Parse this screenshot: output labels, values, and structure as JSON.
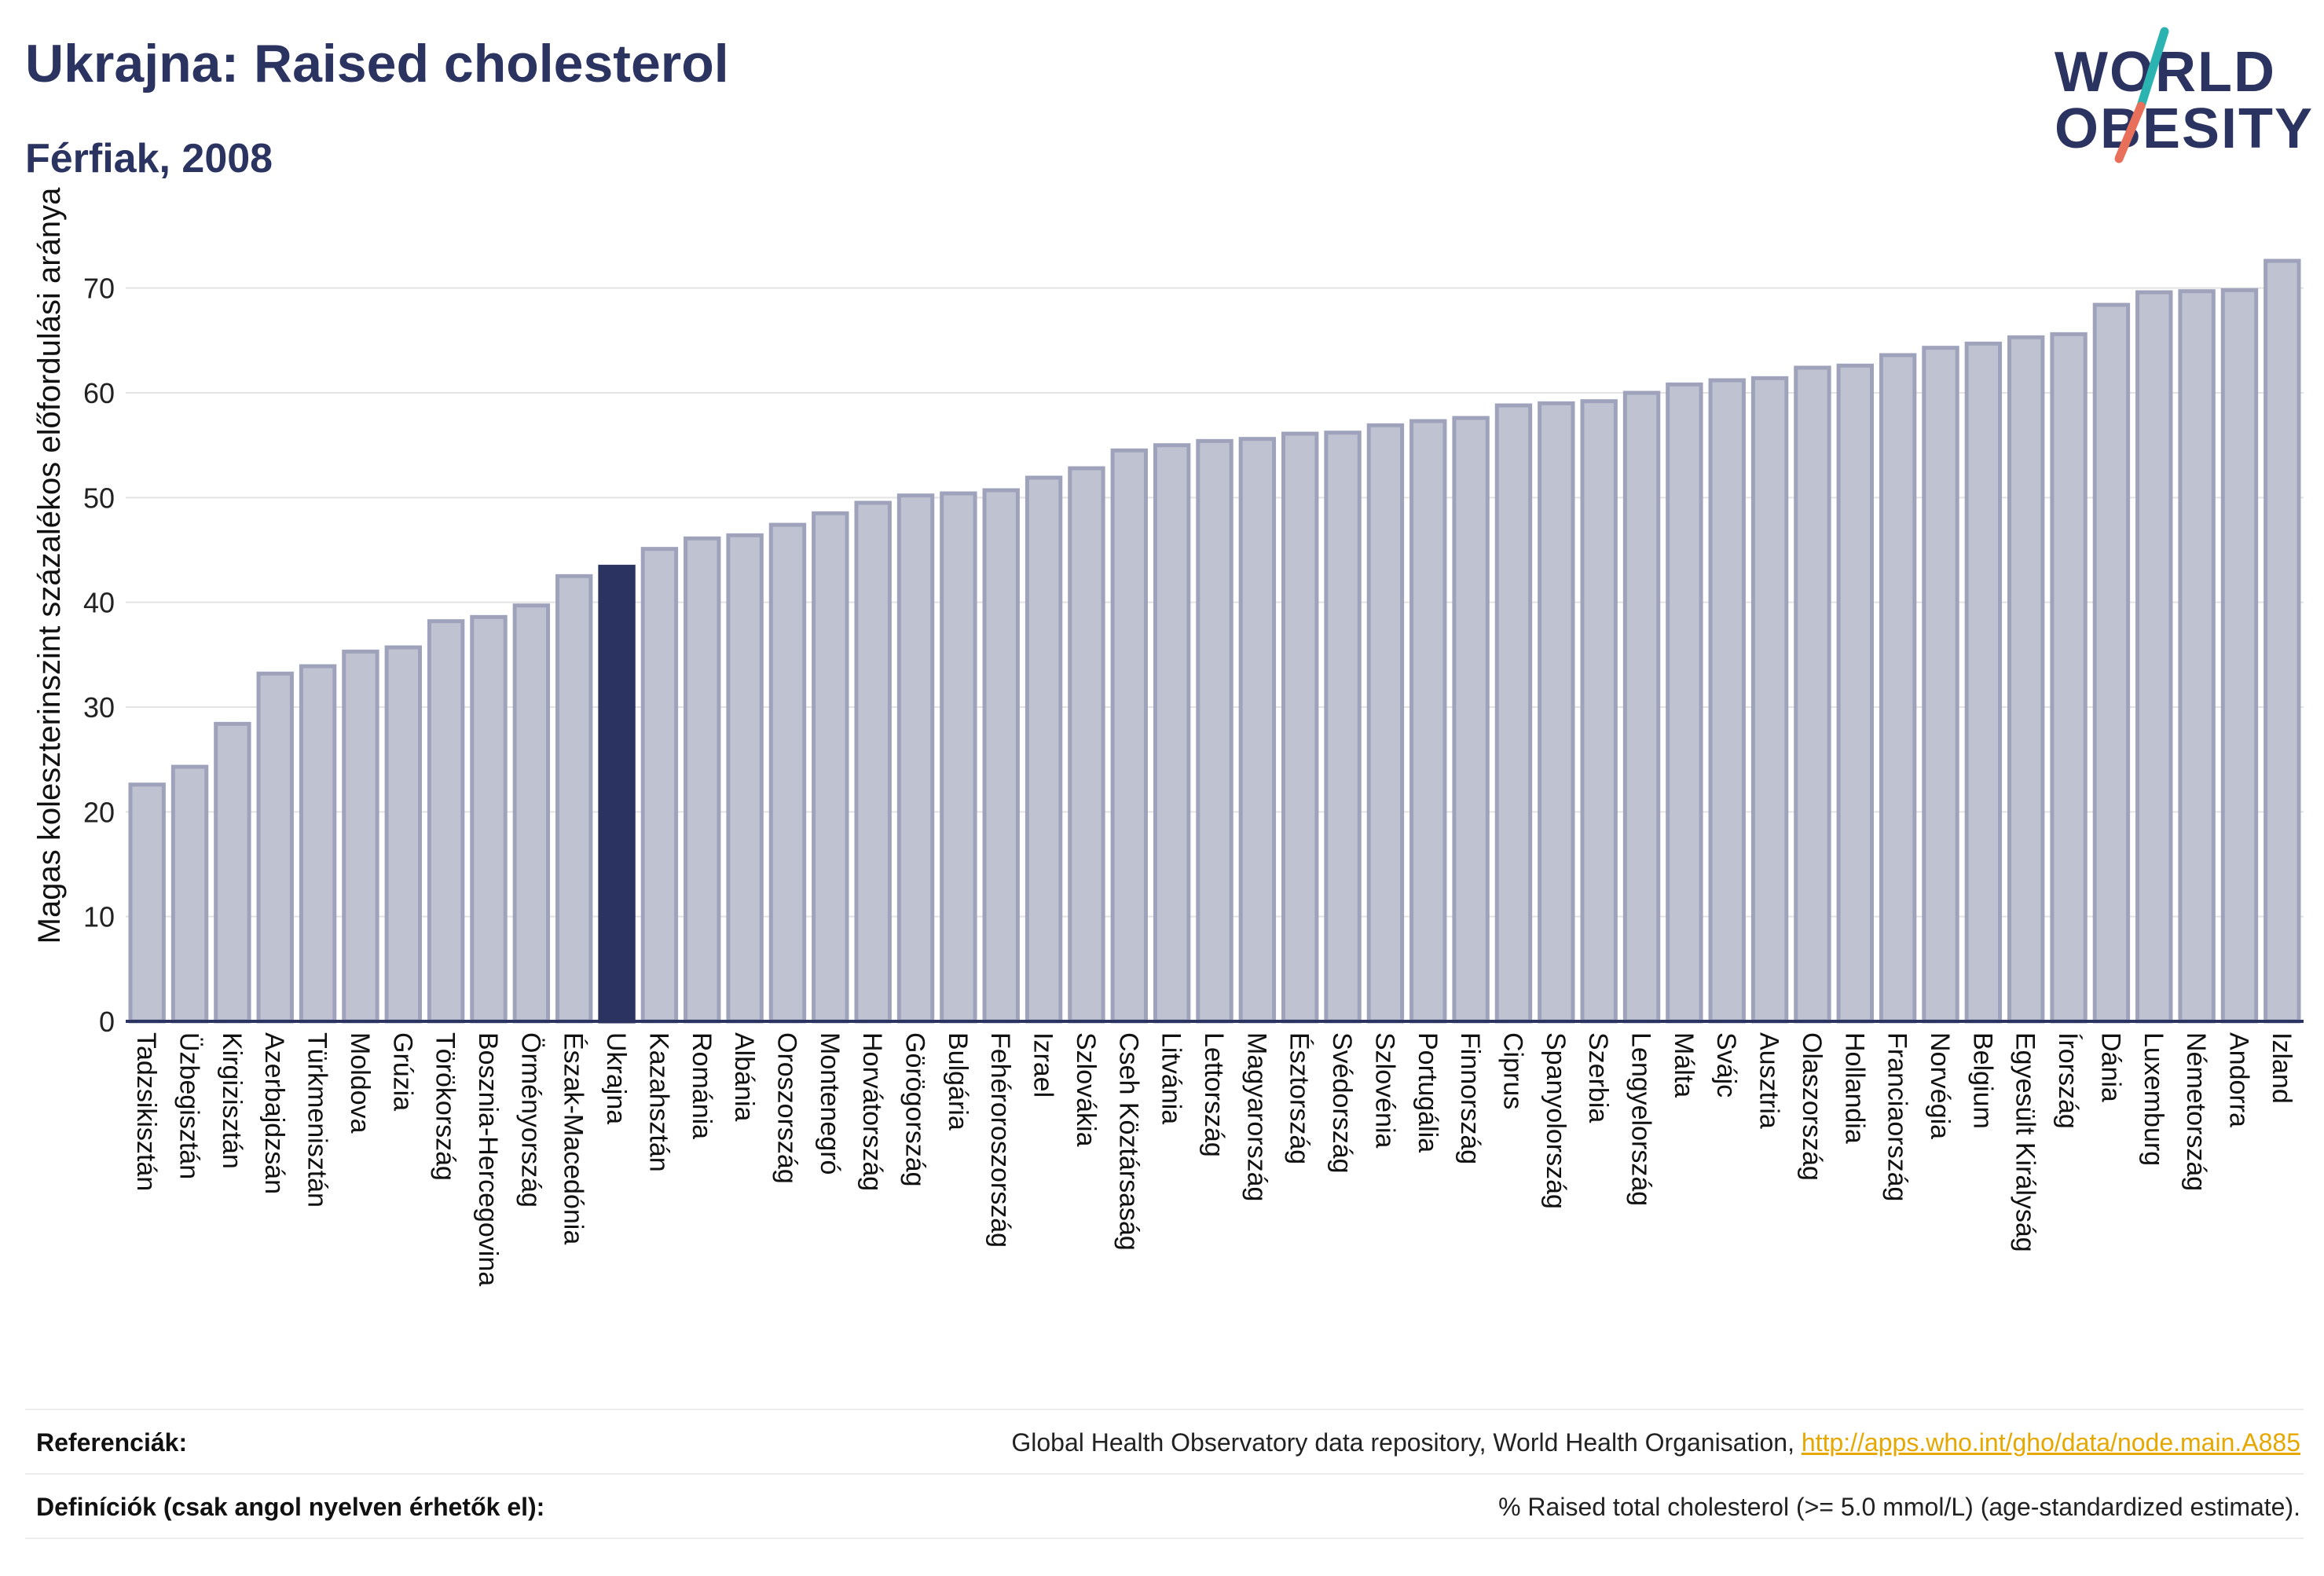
{
  "header": {
    "title": "Ukrajna: Raised cholesterol",
    "subtitle": "Férfiak, 2008"
  },
  "logo": {
    "line1": "WORLD",
    "line2": "OBESITY",
    "colors": {
      "text": "#2b3360",
      "slash_teal": "#2ab3b0",
      "slash_coral": "#e8705a"
    }
  },
  "chart_data": {
    "type": "bar",
    "title": "",
    "xlabel": "",
    "ylabel": "Magas koleszterinszint százalékos előfordulási aránya",
    "ylim": [
      0,
      75
    ],
    "yticks": [
      0,
      10,
      20,
      30,
      40,
      50,
      60,
      70
    ],
    "grid": true,
    "highlight_category": "Ukrajna",
    "colors": {
      "bar": "#bfc2d1",
      "bar_edge": "#9ea3bb",
      "highlight": "#2b3360",
      "axis": "#2b3360",
      "grid": "#e3e3e3"
    },
    "categories": [
      "Tadzsikisztán",
      "Üzbegisztán",
      "Kirgizisztán",
      "Azerbajdzsán",
      "Türkmenisztán",
      "Moldova",
      "Grúzia",
      "Törökország",
      "Bosznia-Hercegovina",
      "Örményország",
      "Észak-Macedónia",
      "Ukrajna",
      "Kazahsztán",
      "Románia",
      "Albánia",
      "Oroszország",
      "Montenegró",
      "Horvátország",
      "Görögország",
      "Bulgária",
      "Fehéroroszország",
      "Izrael",
      "Szlovákia",
      "Cseh Köztársaság",
      "Litvánia",
      "Lettország",
      "Magyarország",
      "Észtország",
      "Svédország",
      "Szlovénia",
      "Portugália",
      "Finnország",
      "Ciprus",
      "Spanyolország",
      "Szerbia",
      "Lengyelország",
      "Málta",
      "Svájc",
      "Ausztria",
      "Olaszország",
      "Hollandia",
      "Franciaország",
      "Norvégia",
      "Belgium",
      "Egyesült Királyság",
      "Írország",
      "Dánia",
      "Luxemburg",
      "Németország",
      "Andorra",
      "Izland"
    ],
    "values": [
      22.6,
      24.3,
      28.4,
      33.2,
      33.9,
      35.3,
      35.7,
      38.2,
      38.6,
      39.7,
      42.5,
      43.4,
      45.1,
      46.1,
      46.4,
      47.4,
      48.5,
      49.5,
      50.2,
      50.4,
      50.7,
      51.9,
      52.8,
      54.5,
      55.0,
      55.4,
      55.6,
      56.1,
      56.2,
      56.9,
      57.3,
      57.6,
      58.8,
      59.0,
      59.2,
      60.0,
      60.8,
      61.2,
      61.4,
      62.4,
      62.6,
      63.6,
      64.3,
      64.7,
      65.3,
      65.6,
      68.4,
      69.6,
      69.7,
      69.8,
      72.6
    ]
  },
  "footer": {
    "references_label": "Referenciák:",
    "references_text": "Global Health Observatory data repository, World Health Organisation, ",
    "references_link": "http://apps.who.int/gho/data/node.main.A885",
    "definitions_label": "Definíciók (csak angol nyelven érhetők el):",
    "definitions_text": "% Raised total cholesterol (>= 5.0 mmol/L) (age-standardized estimate)."
  }
}
